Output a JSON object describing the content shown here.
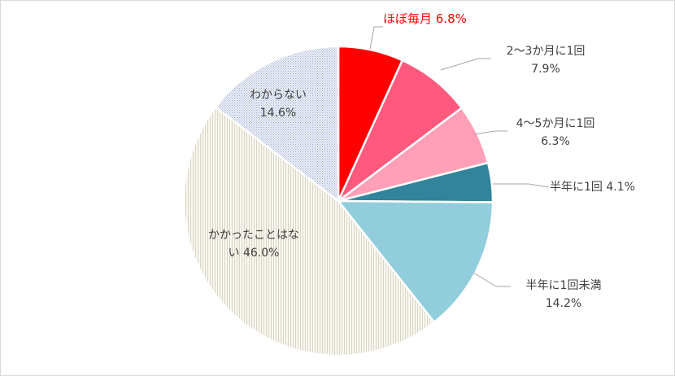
{
  "chart_data": {
    "type": "pie",
    "title": "",
    "slices": [
      {
        "label": "ほぼ毎月",
        "value": 6.8,
        "value_text": "6.8%",
        "color": "#ff0000"
      },
      {
        "label": "2～3か月に1回",
        "value": 7.9,
        "value_text": "7.9%",
        "color": "#ff5a7e"
      },
      {
        "label": "4～5か月に1回",
        "value": 6.3,
        "value_text": "6.3%",
        "color": "#ffa0b8"
      },
      {
        "label": "半年に1回",
        "value": 4.1,
        "value_text": "4.1%",
        "color": "#31849b"
      },
      {
        "label": "半年に1回未満",
        "value": 14.2,
        "value_text": "14.2%",
        "color": "#92cddc"
      },
      {
        "label": "かかったことはな\nい",
        "value": 46.0,
        "value_text": "46.0%",
        "color": "#eeece1",
        "pattern": "vertical-stripes"
      },
      {
        "label": "わからない",
        "value": 14.6,
        "value_text": "14.6%",
        "color": "#dce3f0",
        "pattern": "dots"
      }
    ],
    "legend": "none"
  }
}
